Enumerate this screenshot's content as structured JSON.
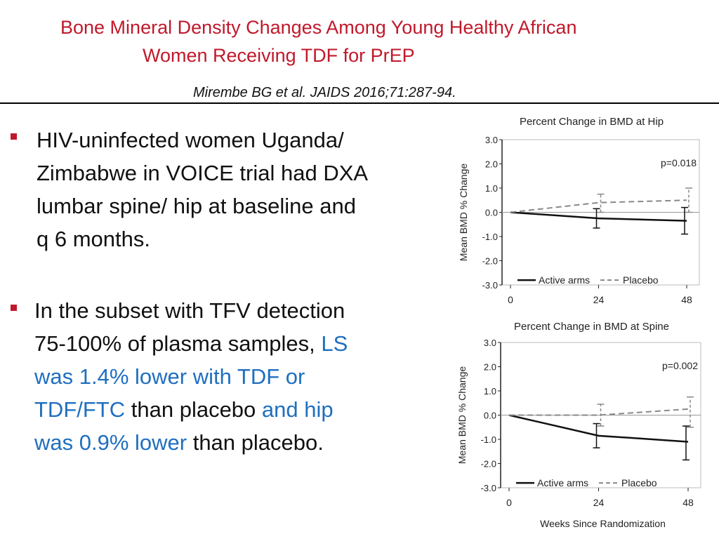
{
  "slide": {
    "title_line1": "Bone Mineral Density Changes Among Young Healthy  African",
    "title_line2": "Women Receiving TDF for PrEP",
    "citation": "Mirembe BG et al.  JAIDS 2016;71:287-94.",
    "colors": {
      "title": "#c0192b",
      "highlight": "#1f6fc0",
      "bullet": "#c0192b"
    },
    "bullets": [
      {
        "lines": [
          "HIV-uninfected women Uganda/",
          "Zimbabwe in VOICE trial had DXA",
          "lumbar spine/ hip at baseline and",
          "q 6 months."
        ]
      },
      {
        "line1": "In the  subset with TFV detection",
        "line2a": "75-100% of plasma samples, ",
        "line2b": "LS",
        "line3": "was 1.4% lower with TDF or",
        "line4a": "TDF/FTC",
        "line4b": " than placebo ",
        "line4c": "and hip",
        "line5a": "was 0.9% lower",
        "line5b": " than placebo."
      }
    ]
  },
  "chart_data": [
    {
      "type": "line",
      "title": "Percent Change in BMD at Hip",
      "xlabel": "",
      "ylabel": "Mean BMD % Change",
      "x": [
        0,
        24,
        48
      ],
      "xticks": [
        "0",
        "24",
        "48"
      ],
      "yticks": [
        "3.0",
        "2.0",
        "1.0",
        "0.0",
        "-1.0",
        "-2.0",
        "-3.0"
      ],
      "ylim": [
        -3,
        3
      ],
      "annotation": "p=0.018",
      "series": [
        {
          "name": "Active arms",
          "style": "solid",
          "values": [
            0,
            -0.25,
            -0.35
          ],
          "err_low": [
            0,
            -0.65,
            -0.9
          ],
          "err_high": [
            0,
            0.15,
            0.2
          ]
        },
        {
          "name": "Placebo",
          "style": "dashed",
          "values": [
            0,
            0.4,
            0.5
          ],
          "err_low": [
            0,
            0.0,
            0.0
          ],
          "err_high": [
            0,
            0.75,
            1.0
          ]
        }
      ]
    },
    {
      "type": "line",
      "title": "Percent Change in BMD at Spine",
      "xlabel": "Weeks Since Randomization",
      "ylabel": "Mean BMD % Change",
      "x": [
        0,
        24,
        48
      ],
      "xticks": [
        "0",
        "24",
        "48"
      ],
      "yticks": [
        "3.0",
        "2.0",
        "1.0",
        "0.0",
        "-1.0",
        "-2.0",
        "-3.0"
      ],
      "ylim": [
        -3,
        3
      ],
      "annotation": "p=0.002",
      "series": [
        {
          "name": "Active arms",
          "style": "solid",
          "values": [
            0,
            -0.85,
            -1.1
          ],
          "err_low": [
            0,
            -1.35,
            -1.85
          ],
          "err_high": [
            0,
            -0.35,
            -0.45
          ]
        },
        {
          "name": "Placebo",
          "style": "dashed",
          "values": [
            0,
            0.0,
            0.25
          ],
          "err_low": [
            0,
            -0.45,
            -0.5
          ],
          "err_high": [
            0,
            0.45,
            0.75
          ]
        }
      ]
    }
  ]
}
